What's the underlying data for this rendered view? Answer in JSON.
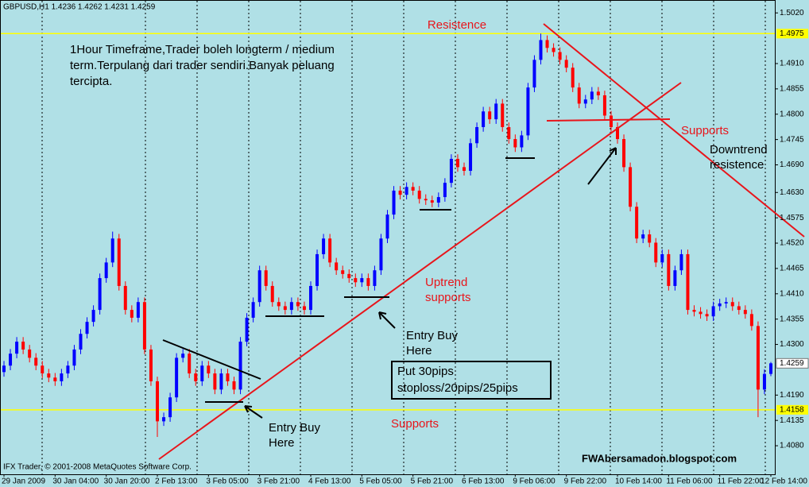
{
  "chart_data": {
    "type": "candlestick",
    "title": "GBPUSD,H1  1.4236 1.4262 1.4231 1.4259",
    "categories": [
      "29 Jan 2009",
      null,
      null,
      null,
      null,
      null,
      null,
      null,
      "30 Jan 04:00",
      null,
      null,
      null,
      null,
      null,
      null,
      null,
      "30 Jan 20:00",
      null,
      null,
      null,
      null,
      null,
      null,
      null,
      "2 Feb 13:00",
      null,
      null,
      null,
      null,
      null,
      null,
      null,
      "3 Feb 05:00",
      null,
      null,
      null,
      null,
      null,
      null,
      null,
      "3 Feb 21:00",
      null,
      null,
      null,
      null,
      null,
      null,
      null,
      "4 Feb 13:00",
      null,
      null,
      null,
      null,
      null,
      null,
      null,
      "5 Feb 05:00",
      null,
      null,
      null,
      null,
      null,
      null,
      null,
      "5 Feb 21:00",
      null,
      null,
      null,
      null,
      null,
      null,
      null,
      "6 Feb 13:00",
      null,
      null,
      null,
      null,
      null,
      null,
      null,
      "9 Feb 06:00",
      null,
      null,
      null,
      null,
      null,
      null,
      null,
      "9 Feb 22:00",
      null,
      null,
      null,
      null,
      null,
      null,
      null,
      "10 Feb 14:00",
      null,
      null,
      null,
      null,
      null,
      null,
      null,
      "11 Feb 06:00",
      null,
      null,
      null,
      null,
      null,
      null,
      null,
      "11 Feb 22:00",
      null,
      null,
      null,
      null,
      null,
      null,
      null,
      "12 Feb 14:00"
    ],
    "open": [
      1.424,
      1.4254,
      1.428,
      1.4306,
      1.4289,
      1.4271,
      1.4254,
      1.4237,
      1.4228,
      1.422,
      1.4237,
      1.4254,
      1.4289,
      1.4323,
      1.4349,
      1.4375,
      1.4444,
      1.4478,
      1.453,
      1.4427,
      1.4375,
      1.4358,
      1.4392,
      1.4289,
      1.422,
      1.4133,
      1.4142,
      1.4185,
      1.4271,
      1.428,
      1.4237,
      1.422,
      1.4254,
      1.4237,
      1.4202,
      1.4237,
      1.422,
      1.4202,
      1.4306,
      1.4358,
      1.4392,
      1.4461,
      1.4427,
      1.4392,
      1.4383,
      1.4375,
      1.4392,
      1.4383,
      1.4375,
      1.4427,
      1.4496,
      1.453,
      1.4478,
      1.4461,
      1.4453,
      1.4444,
      1.4435,
      1.4444,
      1.4427,
      1.4461,
      1.453,
      1.4582,
      1.4634,
      1.4625,
      1.4642,
      1.4634,
      1.4616,
      1.4613,
      1.4608,
      1.462,
      1.4651,
      1.4703,
      1.4685,
      1.4677,
      1.4737,
      1.4772,
      1.4806,
      1.4789,
      1.4823,
      1.4772,
      1.4746,
      1.4728,
      1.4754,
      1.4858,
      1.4918,
      1.4961,
      1.4944,
      1.4935,
      1.4918,
      1.4901,
      1.4858,
      1.4823,
      1.4832,
      1.4849,
      1.4841,
      1.4797,
      1.4772,
      1.4746,
      1.4685,
      1.4599,
      1.453,
      1.4539,
      1.4521,
      1.4478,
      1.4496,
      1.4427,
      1.4461,
      1.4496,
      1.4375,
      1.4371,
      1.4366,
      1.4361,
      1.4383,
      1.4389,
      1.4392,
      1.4383,
      1.4375,
      1.4366,
      1.434,
      1.4202,
      1.4236
    ],
    "high": [
      1.4264,
      1.429,
      1.4316,
      1.4316,
      1.4299,
      1.4281,
      1.4264,
      1.4247,
      1.4238,
      1.4247,
      1.4264,
      1.4299,
      1.4333,
      1.4359,
      1.4385,
      1.4454,
      1.4488,
      1.4545,
      1.454,
      1.4437,
      1.4385,
      1.4402,
      1.4402,
      1.4299,
      1.423,
      1.4152,
      1.4195,
      1.4281,
      1.429,
      1.429,
      1.4247,
      1.4264,
      1.4264,
      1.4247,
      1.4247,
      1.4247,
      1.423,
      1.4316,
      1.4368,
      1.4402,
      1.4471,
      1.4471,
      1.4437,
      1.4402,
      1.4393,
      1.4402,
      1.4402,
      1.4393,
      1.4437,
      1.4506,
      1.454,
      1.454,
      1.4488,
      1.4471,
      1.4463,
      1.4454,
      1.4454,
      1.4454,
      1.4471,
      1.454,
      1.4592,
      1.4644,
      1.4644,
      1.4652,
      1.4652,
      1.4644,
      1.4626,
      1.4623,
      1.463,
      1.4661,
      1.4713,
      1.4713,
      1.4695,
      1.4747,
      1.4782,
      1.4816,
      1.4816,
      1.4833,
      1.4833,
      1.4782,
      1.4756,
      1.4764,
      1.4868,
      1.4928,
      1.4975,
      1.4971,
      1.4954,
      1.4945,
      1.4928,
      1.4911,
      1.4868,
      1.4842,
      1.4859,
      1.4859,
      1.4851,
      1.4807,
      1.4782,
      1.4756,
      1.4695,
      1.4609,
      1.4549,
      1.4549,
      1.4531,
      1.4506,
      1.4506,
      1.4471,
      1.4506,
      1.4506,
      1.4385,
      1.4381,
      1.4376,
      1.4393,
      1.4399,
      1.4402,
      1.4402,
      1.4393,
      1.4385,
      1.4376,
      1.435,
      1.4246,
      1.4262
    ],
    "low": [
      1.423,
      1.4244,
      1.427,
      1.4279,
      1.4261,
      1.4244,
      1.4227,
      1.4218,
      1.421,
      1.421,
      1.4227,
      1.4244,
      1.4279,
      1.4313,
      1.4339,
      1.4365,
      1.4434,
      1.4468,
      1.4417,
      1.4365,
      1.4348,
      1.4348,
      1.4279,
      1.421,
      1.4099,
      1.4123,
      1.4132,
      1.4175,
      1.4261,
      1.4227,
      1.421,
      1.421,
      1.4227,
      1.4192,
      1.4192,
      1.421,
      1.4192,
      1.4192,
      1.4296,
      1.4348,
      1.4382,
      1.4417,
      1.4382,
      1.4373,
      1.4365,
      1.4365,
      1.4373,
      1.4365,
      1.4365,
      1.4417,
      1.4486,
      1.4468,
      1.4451,
      1.4443,
      1.4434,
      1.4425,
      1.4425,
      1.4417,
      1.4417,
      1.4451,
      1.452,
      1.4572,
      1.4615,
      1.4615,
      1.4624,
      1.4606,
      1.4603,
      1.4598,
      1.4598,
      1.461,
      1.4641,
      1.4675,
      1.4667,
      1.4667,
      1.4727,
      1.4762,
      1.4779,
      1.4779,
      1.4762,
      1.4736,
      1.4718,
      1.4718,
      1.4744,
      1.4848,
      1.4908,
      1.4934,
      1.4925,
      1.4908,
      1.4891,
      1.4848,
      1.4813,
      1.4813,
      1.4822,
      1.4831,
      1.4787,
      1.4762,
      1.4736,
      1.4675,
      1.4589,
      1.452,
      1.452,
      1.4511,
      1.4468,
      1.4468,
      1.4417,
      1.4417,
      1.4451,
      1.4365,
      1.4361,
      1.4356,
      1.4351,
      1.4351,
      1.4373,
      1.4379,
      1.4373,
      1.4365,
      1.4356,
      1.433,
      1.4142,
      1.4192,
      1.4231
    ],
    "close": [
      1.4254,
      1.428,
      1.4306,
      1.4289,
      1.4271,
      1.4254,
      1.4237,
      1.4228,
      1.422,
      1.4237,
      1.4254,
      1.4289,
      1.4323,
      1.4349,
      1.4375,
      1.4444,
      1.4478,
      1.453,
      1.4427,
      1.4375,
      1.4358,
      1.4392,
      1.4289,
      1.422,
      1.4133,
      1.4142,
      1.4185,
      1.4271,
      1.428,
      1.4237,
      1.422,
      1.4254,
      1.4237,
      1.4202,
      1.4237,
      1.422,
      1.4202,
      1.4306,
      1.4358,
      1.4392,
      1.4461,
      1.4427,
      1.4392,
      1.4383,
      1.4375,
      1.4392,
      1.4383,
      1.4375,
      1.4427,
      1.4496,
      1.453,
      1.4478,
      1.4461,
      1.4453,
      1.4444,
      1.4435,
      1.4444,
      1.4427,
      1.4461,
      1.453,
      1.4582,
      1.4634,
      1.4625,
      1.4642,
      1.4634,
      1.4616,
      1.4613,
      1.4608,
      1.462,
      1.4651,
      1.4703,
      1.4685,
      1.4677,
      1.4737,
      1.4772,
      1.4806,
      1.4789,
      1.4823,
      1.4772,
      1.4746,
      1.4728,
      1.4754,
      1.4858,
      1.4918,
      1.4961,
      1.4944,
      1.4935,
      1.4918,
      1.4901,
      1.4858,
      1.4823,
      1.4832,
      1.4849,
      1.4841,
      1.4797,
      1.4772,
      1.4746,
      1.4685,
      1.4599,
      1.453,
      1.4539,
      1.4521,
      1.4478,
      1.4496,
      1.4427,
      1.4461,
      1.4496,
      1.4375,
      1.4371,
      1.4366,
      1.4361,
      1.4383,
      1.4389,
      1.4392,
      1.4383,
      1.4375,
      1.4366,
      1.434,
      1.4202,
      1.4236,
      1.4259
    ],
    "up_color": "#0000ff",
    "down_color": "#ff0000",
    "ylim": [
      1.4018,
      1.5048
    ],
    "yticks": [
      {
        "value": 1.502,
        "label": "1.5020"
      },
      {
        "value": 1.491,
        "label": "1.4910"
      },
      1.4855,
      {
        "value": 1.48,
        "label": "1.4800"
      },
      1.4745,
      {
        "value": 1.469,
        "label": "1.4690"
      },
      {
        "value": 1.463,
        "label": "1.4630"
      },
      1.4575,
      {
        "value": 1.452,
        "label": "1.4520"
      },
      1.4465,
      {
        "value": 1.441,
        "label": "1.4410"
      },
      1.4355,
      {
        "value": 1.43,
        "label": "1.4300"
      },
      {
        "value": 1.419,
        "label": "1.4190"
      },
      1.4135,
      {
        "value": 1.408,
        "label": "1.4080"
      }
    ],
    "levels": [
      1.4975,
      1.4158
    ],
    "level_color": "#ffff00",
    "note": [
      "1Hour Timeframe,Trader boleh longterm / medium",
      "term.Terpulang dari trader sendiri.Banyak peluang",
      "tercipta."
    ],
    "resistance_label": "Resistence",
    "supports_label_top": "Supports",
    "downtrend_label": [
      "Downtrend",
      "resistence"
    ],
    "uptrend_label": [
      "Uptrend",
      "supports"
    ],
    "entry_label_1": [
      "Entry Buy",
      "Here"
    ],
    "entry_label_2": [
      "Entry Buy",
      "Here"
    ],
    "stoploss_box": [
      "Put 30pips",
      "stoploss/20pips/25pips"
    ],
    "supports_label_bottom": "Supports",
    "watermark": "FWAbersamadon.blogspot.com",
    "copyright": "IFX Trader, © 2001-2008 MetaQuotes Software Corp."
  }
}
